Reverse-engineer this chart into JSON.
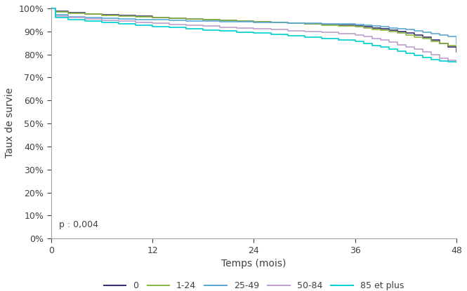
{
  "title": "",
  "xlabel": "Temps (mois)",
  "ylabel": "Taux de survie",
  "xlim": [
    0,
    48
  ],
  "ylim": [
    0.0,
    1.005
  ],
  "yticks": [
    0.0,
    0.1,
    0.2,
    0.3,
    0.4,
    0.5,
    0.6,
    0.7,
    0.8,
    0.9,
    1.0
  ],
  "xticks": [
    0,
    12,
    24,
    36,
    48
  ],
  "p_text": "p : 0,004",
  "series": [
    {
      "label": "0",
      "color": "#3a3070",
      "linewidth": 1.2,
      "x": [
        0,
        0.5,
        2,
        4,
        6,
        8,
        10,
        12,
        14,
        16,
        18,
        20,
        22,
        24,
        26,
        28,
        30,
        32,
        34,
        36,
        37,
        38,
        39,
        40,
        41,
        42,
        43,
        44,
        45,
        46,
        47,
        48
      ],
      "y": [
        1.0,
        0.988,
        0.982,
        0.977,
        0.973,
        0.969,
        0.965,
        0.961,
        0.958,
        0.955,
        0.952,
        0.949,
        0.946,
        0.943,
        0.94,
        0.937,
        0.934,
        0.931,
        0.928,
        0.924,
        0.92,
        0.916,
        0.912,
        0.906,
        0.9,
        0.893,
        0.885,
        0.875,
        0.862,
        0.848,
        0.832,
        0.81
      ]
    },
    {
      "label": "1-24",
      "color": "#8ab840",
      "linewidth": 1.2,
      "x": [
        0,
        0.5,
        2,
        4,
        6,
        8,
        10,
        12,
        14,
        16,
        18,
        20,
        22,
        24,
        26,
        28,
        30,
        32,
        34,
        36,
        37,
        38,
        39,
        40,
        41,
        42,
        43,
        44,
        45,
        46,
        47,
        48
      ],
      "y": [
        1.0,
        0.985,
        0.979,
        0.975,
        0.971,
        0.967,
        0.963,
        0.96,
        0.957,
        0.954,
        0.951,
        0.948,
        0.945,
        0.942,
        0.939,
        0.936,
        0.932,
        0.928,
        0.924,
        0.92,
        0.915,
        0.91,
        0.905,
        0.9,
        0.892,
        0.884,
        0.876,
        0.868,
        0.858,
        0.848,
        0.84,
        0.838
      ]
    },
    {
      "label": "25-49",
      "color": "#5ba8d4",
      "linewidth": 1.2,
      "x": [
        0,
        0.5,
        2,
        4,
        6,
        8,
        10,
        12,
        14,
        16,
        18,
        20,
        22,
        24,
        26,
        28,
        30,
        32,
        34,
        36,
        36.5,
        37,
        38,
        39,
        40,
        41,
        42,
        43,
        44,
        45,
        46,
        47,
        48
      ],
      "y": [
        1.0,
        0.972,
        0.964,
        0.96,
        0.957,
        0.955,
        0.952,
        0.95,
        0.948,
        0.946,
        0.944,
        0.942,
        0.941,
        0.939,
        0.938,
        0.936,
        0.935,
        0.933,
        0.932,
        0.93,
        0.929,
        0.928,
        0.924,
        0.92,
        0.916,
        0.912,
        0.908,
        0.904,
        0.896,
        0.89,
        0.884,
        0.878,
        0.848
      ]
    },
    {
      "label": "50-84",
      "color": "#c0a0cc",
      "linewidth": 1.2,
      "x": [
        0,
        0.5,
        2,
        4,
        6,
        8,
        10,
        12,
        14,
        16,
        18,
        20,
        22,
        24,
        26,
        28,
        30,
        32,
        34,
        36,
        37,
        38,
        39,
        40,
        41,
        42,
        43,
        44,
        45,
        46,
        47,
        48
      ],
      "y": [
        1.0,
        0.968,
        0.96,
        0.954,
        0.949,
        0.944,
        0.94,
        0.935,
        0.931,
        0.927,
        0.923,
        0.919,
        0.916,
        0.912,
        0.908,
        0.904,
        0.9,
        0.895,
        0.89,
        0.884,
        0.878,
        0.87,
        0.862,
        0.853,
        0.843,
        0.833,
        0.822,
        0.81,
        0.798,
        0.785,
        0.775,
        0.768
      ]
    },
    {
      "label": "85 et plus",
      "color": "#00d0d0",
      "linewidth": 1.2,
      "x": [
        0,
        0.5,
        2,
        4,
        6,
        8,
        10,
        12,
        14,
        16,
        18,
        20,
        22,
        24,
        26,
        28,
        30,
        32,
        34,
        36,
        37,
        38,
        39,
        40,
        41,
        42,
        43,
        44,
        45,
        46,
        47,
        48
      ],
      "y": [
        1.0,
        0.96,
        0.952,
        0.945,
        0.939,
        0.933,
        0.927,
        0.922,
        0.917,
        0.912,
        0.907,
        0.902,
        0.897,
        0.892,
        0.887,
        0.882,
        0.876,
        0.87,
        0.863,
        0.856,
        0.848,
        0.84,
        0.832,
        0.823,
        0.814,
        0.805,
        0.796,
        0.787,
        0.778,
        0.772,
        0.768,
        0.764
      ]
    }
  ],
  "background_color": "#ffffff",
  "axis_color": "#909090",
  "tick_color": "#404040",
  "spine_color": "#a0a0a0",
  "fontsize_labels": 10,
  "fontsize_ticks": 9,
  "fontsize_legend": 9,
  "fontsize_ptext": 9
}
